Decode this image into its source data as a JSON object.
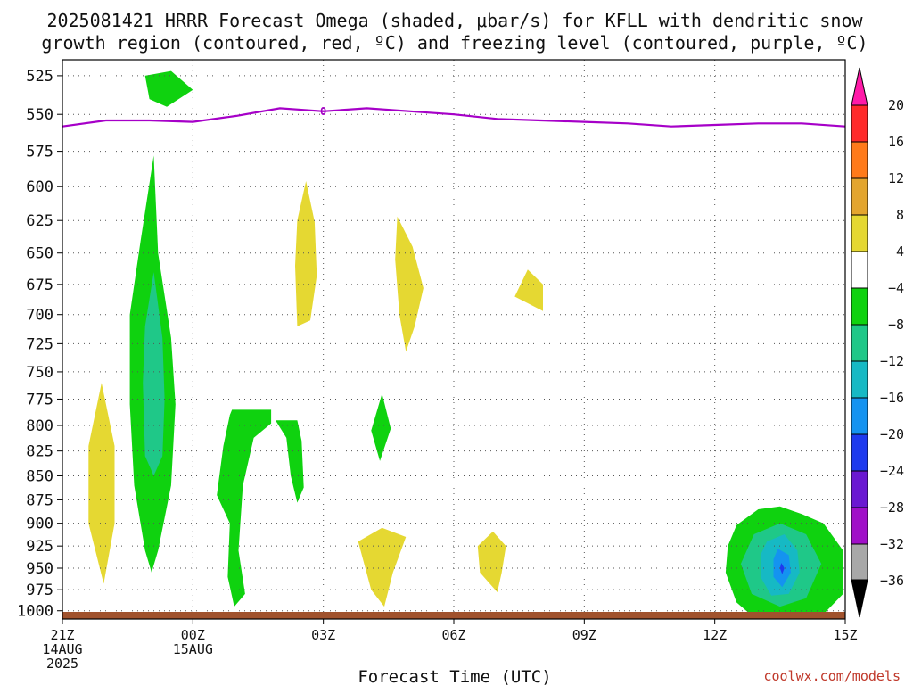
{
  "title_line1": "2025081421 HRRR Forecast Omega (shaded, μbar/s) for KFLL with dendritic snow",
  "title_line2": "growth region (contoured, red, ºC) and freezing level (contoured, purple, ºC)",
  "xlabel": "Forecast Time (UTC)",
  "watermark": "coolwx.com/models",
  "x_ticks": [
    {
      "hour": 0,
      "lines": [
        "21Z",
        "14AUG",
        "2025"
      ]
    },
    {
      "hour": 3,
      "lines": [
        "00Z",
        "15AUG"
      ]
    },
    {
      "hour": 6,
      "lines": [
        "03Z"
      ]
    },
    {
      "hour": 9,
      "lines": [
        "06Z"
      ]
    },
    {
      "hour": 12,
      "lines": [
        "09Z"
      ]
    },
    {
      "hour": 15,
      "lines": [
        "12Z"
      ]
    },
    {
      "hour": 18,
      "lines": [
        "15Z"
      ]
    }
  ],
  "y_ticks": [
    525,
    550,
    575,
    600,
    625,
    650,
    675,
    700,
    725,
    750,
    775,
    800,
    825,
    850,
    875,
    900,
    925,
    950,
    975,
    1000
  ],
  "colorbar": {
    "colors": [
      "#ff1aa8",
      "#ff2a2a",
      "#ff7a1a",
      "#e3a52e",
      "#e5d832",
      "#ffffff",
      "#0fd20f",
      "#1fc888",
      "#16b9c4",
      "#1493f0",
      "#1e3aee",
      "#6a18d2",
      "#a00fc8",
      "#a8a8a8",
      "#000000"
    ],
    "labels": [
      "20",
      "16",
      "12",
      "8",
      "4",
      "−4",
      "−8",
      "−12",
      "−16",
      "−20",
      "−24",
      "−28",
      "−32",
      "−36"
    ]
  },
  "freezing_label": "0",
  "colors": {
    "freezing_line": "#a600c8",
    "ground": "#a0522d",
    "grid": "#555555",
    "watermark": "#c0392b"
  },
  "chart_data": {
    "type": "contour",
    "x_unit": "forecast hour from 2025081421",
    "y_unit": "hPa",
    "xlim": [
      0,
      18
    ],
    "ylim": [
      515,
      1010
    ],
    "y_scale": "log-pressure (inverted)",
    "grid": true,
    "freezing_level": {
      "x": [
        0,
        1,
        2,
        3,
        4,
        5,
        6,
        7,
        8,
        9,
        10,
        11,
        12,
        13,
        14,
        15,
        16,
        17,
        18
      ],
      "y": [
        558,
        554,
        554,
        555,
        551,
        546,
        548,
        546,
        548,
        550,
        553,
        554,
        555,
        556,
        558,
        557,
        556,
        556,
        558
      ]
    },
    "regions": [
      {
        "level": "-4 to -8",
        "color": "#0fd20f",
        "points": [
          [
            2.4,
            545
          ],
          [
            3.0,
            534
          ],
          [
            2.5,
            522
          ],
          [
            1.9,
            525
          ],
          [
            2.0,
            540
          ]
        ]
      },
      {
        "level": "4 to 8",
        "color": "#e5d832",
        "points": [
          [
            0.9,
            760
          ],
          [
            1.2,
            820
          ],
          [
            1.2,
            900
          ],
          [
            0.95,
            968
          ],
          [
            0.6,
            900
          ],
          [
            0.6,
            820
          ]
        ]
      },
      {
        "level": "-4 to -8",
        "color": "#0fd20f",
        "points": [
          [
            2.1,
            578
          ],
          [
            2.2,
            650
          ],
          [
            2.5,
            720
          ],
          [
            2.6,
            780
          ],
          [
            2.5,
            860
          ],
          [
            2.2,
            930
          ],
          [
            2.05,
            955
          ],
          [
            1.9,
            930
          ],
          [
            1.65,
            860
          ],
          [
            1.55,
            780
          ],
          [
            1.55,
            700
          ],
          [
            1.8,
            640
          ]
        ]
      },
      {
        "level": "-8 to -12",
        "color": "#1fc888",
        "points": [
          [
            2.1,
            665
          ],
          [
            2.3,
            720
          ],
          [
            2.35,
            775
          ],
          [
            2.3,
            830
          ],
          [
            2.1,
            850
          ],
          [
            1.9,
            830
          ],
          [
            1.85,
            760
          ],
          [
            1.9,
            710
          ]
        ]
      },
      {
        "level": "4 to 8",
        "color": "#e5d832",
        "points": [
          [
            5.6,
            596
          ],
          [
            5.8,
            626
          ],
          [
            5.85,
            668
          ],
          [
            5.7,
            705
          ],
          [
            5.4,
            710
          ],
          [
            5.35,
            660
          ],
          [
            5.4,
            625
          ]
        ]
      },
      {
        "level": "-4 to -8",
        "color": "#0fd20f",
        "points": [
          [
            3.9,
            785
          ],
          [
            4.8,
            785
          ],
          [
            4.8,
            798
          ],
          [
            4.4,
            812
          ],
          [
            4.15,
            860
          ],
          [
            4.05,
            930
          ],
          [
            4.2,
            980
          ],
          [
            3.95,
            995
          ],
          [
            3.8,
            960
          ],
          [
            3.85,
            900
          ],
          [
            3.55,
            870
          ],
          [
            3.7,
            820
          ],
          [
            3.85,
            790
          ]
        ]
      },
      {
        "level": "-4 to -8",
        "color": "#0fd20f",
        "points": [
          [
            4.9,
            795
          ],
          [
            5.4,
            795
          ],
          [
            5.5,
            815
          ],
          [
            5.55,
            862
          ],
          [
            5.4,
            878
          ],
          [
            5.25,
            850
          ],
          [
            5.15,
            812
          ]
        ]
      },
      {
        "level": "4 to 8",
        "color": "#e5d832",
        "points": [
          [
            7.7,
            622
          ],
          [
            8.05,
            645
          ],
          [
            8.3,
            678
          ],
          [
            8.1,
            710
          ],
          [
            7.9,
            732
          ],
          [
            7.75,
            700
          ],
          [
            7.65,
            655
          ]
        ]
      },
      {
        "level": "-4 to -8",
        "color": "#0fd20f",
        "points": [
          [
            7.35,
            770
          ],
          [
            7.55,
            803
          ],
          [
            7.3,
            835
          ],
          [
            7.1,
            805
          ]
        ]
      },
      {
        "level": "4 to 8",
        "color": "#e5d832",
        "points": [
          [
            7.35,
            905
          ],
          [
            7.9,
            915
          ],
          [
            7.6,
            955
          ],
          [
            7.4,
            995
          ],
          [
            7.1,
            975
          ],
          [
            6.8,
            920
          ]
        ]
      },
      {
        "level": "4 to 8",
        "color": "#e5d832",
        "points": [
          [
            9.9,
            909
          ],
          [
            10.2,
            925
          ],
          [
            10.1,
            955
          ],
          [
            10.0,
            978
          ],
          [
            9.6,
            955
          ],
          [
            9.55,
            925
          ]
        ]
      },
      {
        "level": "4 to 8",
        "color": "#e5d832",
        "points": [
          [
            10.7,
            663
          ],
          [
            11.05,
            675
          ],
          [
            11.05,
            697
          ],
          [
            10.4,
            685
          ]
        ]
      },
      {
        "level": "-4 to -8",
        "color": "#0fd20f",
        "points": [
          [
            15.5,
            902
          ],
          [
            16,
            885
          ],
          [
            16.5,
            882
          ],
          [
            17,
            890
          ],
          [
            17.5,
            900
          ],
          [
            17.95,
            930
          ],
          [
            17.95,
            980
          ],
          [
            17.5,
            1004
          ],
          [
            16.8,
            1010
          ],
          [
            15.9,
            1008
          ],
          [
            15.5,
            990
          ],
          [
            15.25,
            955
          ],
          [
            15.3,
            925
          ]
        ]
      },
      {
        "level": "-8 to -12",
        "color": "#1fc888",
        "points": [
          [
            15.9,
            912
          ],
          [
            16.5,
            900
          ],
          [
            17.1,
            912
          ],
          [
            17.45,
            945
          ],
          [
            17.1,
            985
          ],
          [
            16.5,
            995
          ],
          [
            15.85,
            980
          ],
          [
            15.6,
            945
          ]
        ]
      },
      {
        "level": "-12 to -16",
        "color": "#16b9c4",
        "points": [
          [
            16.2,
            920
          ],
          [
            16.6,
            912
          ],
          [
            16.9,
            930
          ],
          [
            16.95,
            955
          ],
          [
            16.7,
            980
          ],
          [
            16.3,
            982
          ],
          [
            16.05,
            960
          ],
          [
            16.05,
            935
          ]
        ]
      },
      {
        "level": "-16 to -20",
        "color": "#1493f0",
        "points": [
          [
            16.45,
            928
          ],
          [
            16.7,
            935
          ],
          [
            16.75,
            955
          ],
          [
            16.55,
            972
          ],
          [
            16.35,
            960
          ],
          [
            16.35,
            940
          ]
        ]
      },
      {
        "level": "-20 to -24",
        "color": "#1e3aee",
        "points": [
          [
            16.53,
            944
          ],
          [
            16.6,
            950
          ],
          [
            16.55,
            957
          ],
          [
            16.5,
            950
          ]
        ]
      }
    ]
  }
}
